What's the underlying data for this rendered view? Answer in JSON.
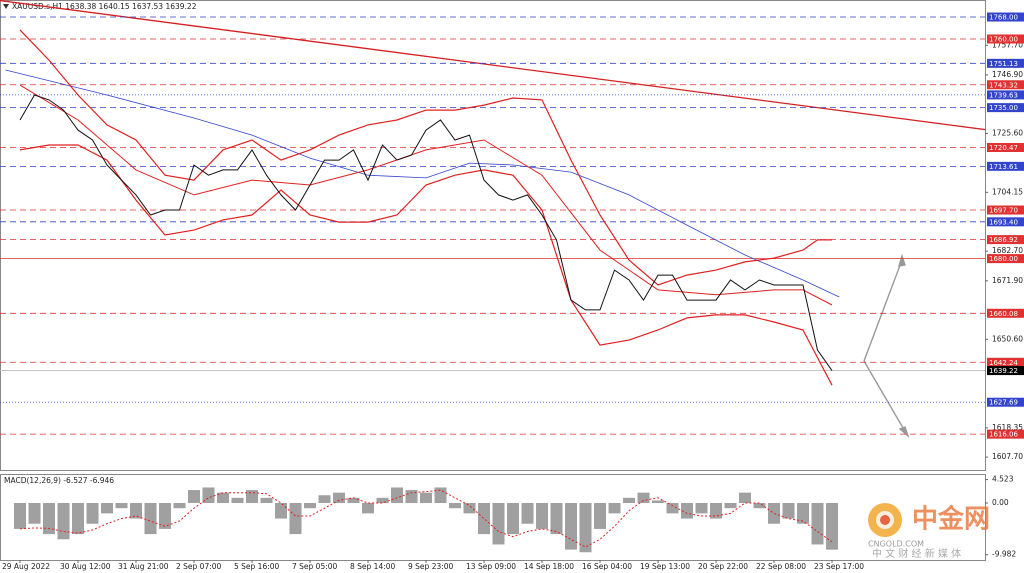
{
  "chart_data": [
    {
      "type": "line",
      "title": "XAUUSD.s,H1  1638.38 1640.15 1637.53 1639.22",
      "xlim": [
        -1.38,
        66.55
      ],
      "ylim": [
        1603,
        1774.2
      ],
      "xticks": [
        {
          "value": 0,
          "label": "29 Aug 2022"
        },
        {
          "value": 4,
          "label": "30 Aug 12:00"
        },
        {
          "value": 8,
          "label": "31 Aug 21:00"
        },
        {
          "value": 12,
          "label": "2 Sep 07:00"
        },
        {
          "value": 16,
          "label": "5 Sep 16:00"
        },
        {
          "value": 20,
          "label": "7 Sep 05:00"
        },
        {
          "value": 24,
          "label": "8 Sep 14:00"
        },
        {
          "value": 28,
          "label": "9 Sep 23:00"
        },
        {
          "value": 32,
          "label": "13 Sep 09:00"
        },
        {
          "value": 36,
          "label": "14 Sep 18:00"
        },
        {
          "value": 40,
          "label": "16 Sep 04:00"
        },
        {
          "value": 44,
          "label": "19 Sep 13:00"
        },
        {
          "value": 48,
          "label": "20 Sep 22:00"
        },
        {
          "value": 52,
          "label": "22 Sep 08:00"
        },
        {
          "value": 56,
          "label": "23 Sep 17:00"
        }
      ],
      "yticks": [
        {
          "value": 1757.7,
          "label": "1757.70"
        },
        {
          "value": 1746.9,
          "label": "1746.90"
        },
        {
          "value": 1725.6,
          "label": "1725.60"
        },
        1704.15,
        {
          "value": 1682.7,
          "label": "1682.70"
        },
        {
          "value": 1671.9,
          "label": "1671.90"
        },
        {
          "value": 1650.6,
          "label": "1650.60"
        },
        1618.35,
        {
          "value": 1607.7,
          "label": "1607.70"
        }
      ],
      "levels": [
        {
          "value": 1768,
          "label": "1768.00",
          "color": "#3344cc",
          "style": "dashed"
        },
        {
          "value": 1760,
          "label": "1760.00",
          "color": "#e03030",
          "style": "dashed"
        },
        {
          "value": 1751.13,
          "label": "1751.13",
          "color": "#3344cc",
          "style": "dashed"
        },
        {
          "value": 1743.32,
          "label": "1743.32",
          "color": "#e03030",
          "style": "dashed"
        },
        {
          "value": 1739.63,
          "label": "1739.63",
          "color": "#3344cc",
          "style": "dotted"
        },
        {
          "value": 1735,
          "label": "1735.00",
          "color": "#3344cc",
          "style": "dashed"
        },
        {
          "value": 1720.47,
          "label": "1720.47",
          "color": "#e03030",
          "style": "dashed"
        },
        {
          "value": 1713.61,
          "label": "1713.61",
          "color": "#3344cc",
          "style": "dashed"
        },
        {
          "value": 1697.7,
          "label": "1697.70",
          "color": "#e03030",
          "style": "dashed"
        },
        {
          "value": 1693.4,
          "label": "1693.40",
          "color": "#3344cc",
          "style": "dashed"
        },
        {
          "value": 1686.92,
          "label": "1686.92",
          "color": "#e03030",
          "style": "dashed"
        },
        {
          "value": 1680,
          "label": "1680.00",
          "color": "#e03030",
          "style": "solid"
        },
        {
          "value": 1660.08,
          "label": "1660.08",
          "color": "#e03030",
          "style": "dashed"
        },
        {
          "value": 1642.24,
          "label": "1642.24",
          "color": "#e03030",
          "style": "dashed"
        },
        {
          "value": 1639.22,
          "label": "1639.22",
          "color": "#000000",
          "style": "current"
        },
        {
          "value": 1627.69,
          "label": "1627.69",
          "color": "#3344cc",
          "style": "dotted"
        },
        {
          "value": 1616.06,
          "label": "1616.06",
          "color": "#e03030",
          "style": "dashed"
        }
      ],
      "trend": {
        "color": "#d42020",
        "x": [
          -1.38,
          66.55
        ],
        "values": [
          1774,
          1727
        ]
      },
      "series": [
        {
          "color": "#3344cc",
          "width": 0.8,
          "x": [
            -1,
            6,
            12,
            16,
            20,
            24,
            28,
            31,
            34,
            38,
            42,
            46,
            50,
            54,
            56.5
          ],
          "values": [
            1748.7,
            1739.6,
            1731.2,
            1725.0,
            1716.6,
            1710.4,
            1709.4,
            1714.8,
            1714.1,
            1711.5,
            1703.2,
            1692.2,
            1681.3,
            1672.2,
            1666.0
          ]
        },
        {
          "color": "#e02020",
          "width": 1.2,
          "x": [
            0,
            2,
            4,
            6,
            8,
            10,
            12,
            14,
            16,
            18,
            20,
            22,
            24,
            26,
            28,
            30,
            32,
            34,
            36,
            38,
            40,
            42,
            44,
            46,
            48,
            50,
            52,
            54,
            55,
            56
          ],
          "values": [
            1763.3,
            1752.3,
            1739.6,
            1728.7,
            1723.2,
            1710.4,
            1708.6,
            1719.6,
            1723.2,
            1715.9,
            1719.6,
            1725.0,
            1728.7,
            1730.5,
            1734.1,
            1734.1,
            1735.9,
            1738.5,
            1737.8,
            1715.9,
            1695.9,
            1679.5,
            1670.4,
            1674.0,
            1675.8,
            1678.8,
            1680.2,
            1683.1,
            1686.8,
            1686.8
          ]
        },
        {
          "color": "#e02020",
          "width": 1,
          "x": [
            0,
            4,
            8,
            12,
            16,
            20,
            24,
            28,
            32,
            36,
            40,
            44,
            48,
            52,
            54,
            56
          ],
          "values": [
            1743.2,
            1730.5,
            1712.3,
            1703.2,
            1708.6,
            1706.8,
            1712.3,
            1719.6,
            1723.2,
            1710.4,
            1683.1,
            1668.6,
            1666.8,
            1668.6,
            1668.6,
            1663.1
          ]
        },
        {
          "color": "#e02020",
          "width": 1.2,
          "x": [
            0,
            2,
            4,
            6,
            8,
            10,
            12,
            14,
            16,
            18,
            20,
            22,
            24,
            26,
            28,
            30,
            32,
            34,
            36,
            38,
            40,
            42,
            44,
            46,
            48,
            50,
            52,
            54,
            56
          ],
          "values": [
            1719.6,
            1721.4,
            1721.4,
            1715.9,
            1701.3,
            1688.6,
            1690.4,
            1694.1,
            1695.9,
            1705.0,
            1695.9,
            1693.3,
            1693.3,
            1695.9,
            1706.8,
            1710.4,
            1712.3,
            1710.4,
            1697.7,
            1664.9,
            1648.5,
            1650.3,
            1654.0,
            1658.4,
            1659.5,
            1659.5,
            1656.9,
            1654.0,
            1633.9
          ]
        },
        {
          "color": "#111111",
          "width": 1,
          "x": [
            0,
            1,
            2,
            3,
            4,
            5,
            6,
            7,
            8,
            9,
            10,
            11,
            12,
            13,
            14,
            15,
            16,
            17,
            18,
            19,
            20,
            21,
            22,
            23,
            24,
            25,
            26,
            27,
            28,
            29,
            30,
            31,
            32,
            33,
            34,
            35,
            36,
            37,
            38,
            39,
            40,
            41,
            42,
            43,
            44,
            45,
            46,
            47,
            48,
            49,
            50,
            51,
            52,
            53,
            54,
            55,
            56
          ],
          "values": [
            1730.5,
            1739.6,
            1737.8,
            1734.1,
            1726.8,
            1723.2,
            1714.1,
            1708.6,
            1703.2,
            1695.9,
            1697.7,
            1697.7,
            1714.1,
            1710.4,
            1712.3,
            1712.3,
            1719.6,
            1710.4,
            1703.2,
            1697.7,
            1706.8,
            1715.9,
            1715.9,
            1719.6,
            1708.6,
            1721.4,
            1715.9,
            1717.7,
            1726.8,
            1730.5,
            1723.2,
            1725.0,
            1708.6,
            1703.2,
            1701.3,
            1703.2,
            1695.9,
            1686.8,
            1664.9,
            1661.3,
            1661.3,
            1675.8,
            1672.2,
            1664.9,
            1674.0,
            1674.0,
            1664.9,
            1664.9,
            1664.9,
            1672.2,
            1668.6,
            1672.2,
            1670.4,
            1670.4,
            1670.4,
            1646.7,
            1639.2
          ]
        }
      ]
    },
    {
      "type": "macd",
      "title": "MACD(12,26,9) -6.527 -6.946",
      "xlim": [
        -1.38,
        66.55
      ],
      "ylim": [
        -11,
        5.6
      ],
      "yticks": [
        4.523,
        {
          "value": 0,
          "label": "0.00"
        },
        -9.982
      ],
      "series": [
        {
          "kind": "bar",
          "color": "#a0a0a0",
          "x": [
            0,
            1,
            2,
            3,
            4,
            5,
            6,
            7,
            8,
            9,
            10,
            11,
            12,
            13,
            14,
            15,
            16,
            17,
            18,
            19,
            20,
            21,
            22,
            23,
            24,
            25,
            26,
            27,
            28,
            29,
            30,
            31,
            32,
            33,
            34,
            35,
            36,
            37,
            38,
            39,
            40,
            41,
            42,
            43,
            44,
            45,
            46,
            47,
            48,
            49,
            50,
            51,
            52,
            53,
            54,
            55,
            56
          ],
          "values": [
            -5,
            -4,
            -6,
            -7,
            -6,
            -4,
            -2,
            -1,
            -3,
            -6,
            -5,
            -1,
            2.5,
            3,
            2,
            1,
            2.5,
            1,
            -3,
            -6,
            -1,
            1.5,
            2,
            1,
            -2,
            1,
            3,
            2.5,
            2,
            3,
            -1,
            -2,
            -6,
            -8,
            -6,
            -4,
            -5,
            -6,
            -9,
            -9.5,
            -5,
            -2,
            1,
            2,
            0.5,
            -2,
            -3,
            -2,
            -3,
            -1,
            2,
            -1,
            -4,
            -3,
            -4,
            -8,
            -9
          ]
        },
        {
          "kind": "line",
          "color": "#e02020",
          "x": [
            0,
            1,
            2,
            3,
            4,
            5,
            6,
            7,
            8,
            9,
            10,
            11,
            12,
            13,
            14,
            15,
            16,
            17,
            18,
            19,
            20,
            21,
            22,
            23,
            24,
            25,
            26,
            27,
            28,
            29,
            30,
            31,
            32,
            33,
            34,
            35,
            36,
            37,
            38,
            39,
            40,
            41,
            42,
            43,
            44,
            45,
            46,
            47,
            48,
            49,
            50,
            51,
            52,
            53,
            54,
            55,
            56
          ],
          "values": [
            -5,
            -4.8,
            -4.9,
            -5.5,
            -5.8,
            -5.2,
            -4,
            -3,
            -2.5,
            -3.5,
            -4.5,
            -3.5,
            -1,
            1,
            2,
            2,
            2,
            1.8,
            0,
            -2.5,
            -2.5,
            -1,
            0.5,
            1,
            0,
            0,
            1,
            2,
            2.2,
            2.5,
            1,
            -0.5,
            -3,
            -5.5,
            -6.5,
            -5.5,
            -5,
            -5.5,
            -7,
            -8.5,
            -7,
            -4.5,
            -1.5,
            0.5,
            1,
            -0.5,
            -2,
            -2.5,
            -2.5,
            -2,
            0,
            0,
            -2,
            -3,
            -3.5,
            -5.5,
            -7.5
          ]
        }
      ]
    }
  ],
  "watermark": {
    "logo": "中金网",
    "site": "CNGOLD.COM",
    "tagline": "中 文 财 经 新 媒 体"
  }
}
